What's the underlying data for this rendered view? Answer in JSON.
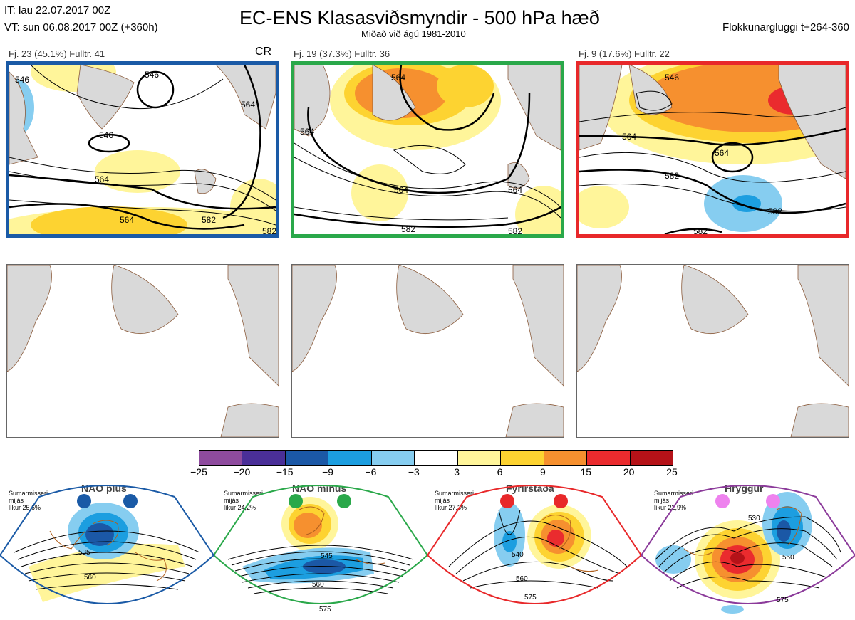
{
  "header": {
    "it_line": "IT: lau 22.07.2017 00Z",
    "vt_line": "VT: sun 06.08.2017 00Z  (+360h)",
    "title": "EC-ENS Klasasviðsmyndir - 500 hPa hæð",
    "subtitle": "Miðað við ágú 1981-2010",
    "window_label": "Flokkunargluggi t+264-360"
  },
  "clusters": [
    {
      "caption": "Fj. 23 (45.1%)   Fulltr. 41",
      "tag": "CR",
      "frame_color": "#1a5aa6",
      "contour_labels": [
        "546",
        "546",
        "546",
        "564",
        "564",
        "582",
        "582",
        "564"
      ]
    },
    {
      "caption": "Fj. 19 (37.3%)   Fulltr. 36",
      "tag": "",
      "frame_color": "#2aa84a",
      "contour_labels": [
        "564",
        "564",
        "564",
        "564",
        "582",
        "582"
      ]
    },
    {
      "caption": "Fj. 9 (17.6%)   Fulltr. 22",
      "tag": "",
      "frame_color": "#e8282a",
      "contour_labels": [
        "546",
        "564",
        "564",
        "582",
        "582",
        "582"
      ]
    }
  ],
  "colorbar": {
    "colors": [
      "#8e4b9e",
      "#4a2f98",
      "#1b58a6",
      "#1c9ee0",
      "#86cdf0",
      "#ffffff",
      "#fff59a",
      "#fdd331",
      "#f6902f",
      "#ea2b2e",
      "#b51218"
    ],
    "ticks": [
      "−25",
      "−20",
      "−15",
      "−9",
      "−6",
      "−3",
      "3",
      "6",
      "9",
      "15",
      "20",
      "25"
    ]
  },
  "regimes": [
    {
      "name": "NAO plús",
      "note": "Sumarmisseri\nmijás\nlíkur 25,6%",
      "dot_color": "#1a5aa6",
      "frame_color": "#1a5aa6",
      "labels": [
        "535",
        "560"
      ]
    },
    {
      "name": "NAO mínus",
      "note": "Sumarmisseri\nmijás\nlíkur 24,2%",
      "dot_color": "#2aa84a",
      "frame_color": "#2aa84a",
      "labels": [
        "545",
        "560",
        "575"
      ]
    },
    {
      "name": "Fyrirstaða",
      "note": "Sumarmisseri\nmijás\nlíkur 27,3%",
      "dot_color": "#e8282a",
      "frame_color": "#e8282a",
      "labels": [
        "540",
        "560",
        "575"
      ]
    },
    {
      "name": "Hryggur",
      "note": "Sumarmisseri\nmijás\nlíkur 22,9%",
      "dot_color": "#ee82ee",
      "frame_color": "#8b3a9a",
      "labels": [
        "530",
        "550",
        "575"
      ]
    }
  ]
}
